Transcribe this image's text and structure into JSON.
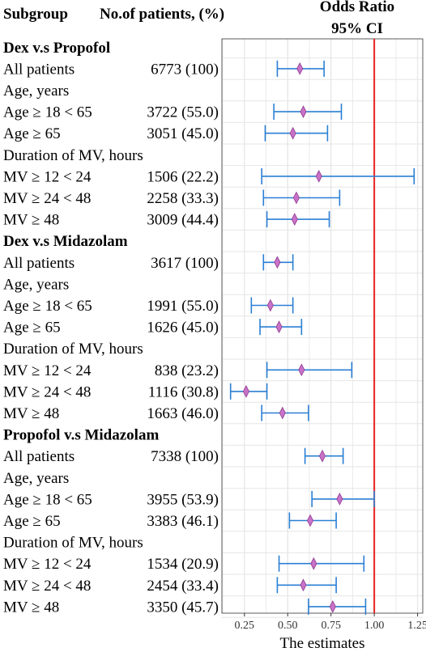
{
  "header": {
    "subgroup": "Subgroup",
    "patients": "No.of patients, (%)",
    "or_line1": "Odds Ratio",
    "or_line2": "95% CI"
  },
  "chart_data": {
    "type": "forest",
    "xlabel": "The estimates",
    "xlim": [
      0.12,
      1.28
    ],
    "xticks": [
      "0.25",
      "0.50",
      "0.75",
      "1.00",
      "1.25"
    ],
    "reference_line": 1.0,
    "colors": {
      "ci": "#2a7fd4",
      "point_fill": "#c872c8",
      "point_stroke": "#8e3a8e",
      "reference": "#e8231f",
      "grid": "#e6e6e6"
    },
    "rows": [
      {
        "kind": "group",
        "label": "Dex v.s Propofol"
      },
      {
        "kind": "data",
        "label": "All patients",
        "count": "6773 (100)",
        "est": 0.57,
        "lo": 0.44,
        "hi": 0.71
      },
      {
        "kind": "sub",
        "label": "Age, years"
      },
      {
        "kind": "data",
        "label": "Age ≥ 18 < 65",
        "count": "3722 (55.0)",
        "est": 0.59,
        "lo": 0.42,
        "hi": 0.81
      },
      {
        "kind": "data",
        "label": "Age ≥ 65",
        "count": "3051 (45.0)",
        "est": 0.53,
        "lo": 0.37,
        "hi": 0.73
      },
      {
        "kind": "sub",
        "label": "Duration of MV, hours"
      },
      {
        "kind": "data",
        "label": "MV ≥ 12 < 24",
        "count": "1506 (22.2)",
        "est": 0.68,
        "lo": 0.35,
        "hi": 1.23
      },
      {
        "kind": "data",
        "label": "MV ≥ 24 < 48",
        "count": "2258 (33.3)",
        "est": 0.55,
        "lo": 0.36,
        "hi": 0.8
      },
      {
        "kind": "data",
        "label": "MV ≥ 48",
        "count": "3009 (44.4)",
        "est": 0.54,
        "lo": 0.38,
        "hi": 0.74
      },
      {
        "kind": "group",
        "label": "Dex v.s Midazolam"
      },
      {
        "kind": "data",
        "label": "All patients",
        "count": "3617 (100)",
        "est": 0.44,
        "lo": 0.36,
        "hi": 0.53
      },
      {
        "kind": "sub",
        "label": "Age, years"
      },
      {
        "kind": "data",
        "label": "Age ≥ 18 < 65",
        "count": "1991 (55.0)",
        "est": 0.4,
        "lo": 0.29,
        "hi": 0.53
      },
      {
        "kind": "data",
        "label": "Age ≥ 65",
        "count": "1626 (45.0)",
        "est": 0.45,
        "lo": 0.34,
        "hi": 0.58
      },
      {
        "kind": "sub",
        "label": "Duration of MV, hours"
      },
      {
        "kind": "data",
        "label": "MV ≥ 12 < 24",
        "count": "838 (23.2)",
        "est": 0.58,
        "lo": 0.38,
        "hi": 0.87
      },
      {
        "kind": "data",
        "label": "MV ≥ 24 < 48",
        "count": "1116 (30.8)",
        "est": 0.26,
        "lo": 0.17,
        "hi": 0.38
      },
      {
        "kind": "data",
        "label": "MV ≥ 48",
        "count": "1663 (46.0)",
        "est": 0.47,
        "lo": 0.35,
        "hi": 0.62
      },
      {
        "kind": "group",
        "label": "Propofol v.s Midazolam"
      },
      {
        "kind": "data",
        "label": "All patients",
        "count": "7338 (100)",
        "est": 0.7,
        "lo": 0.6,
        "hi": 0.82
      },
      {
        "kind": "sub",
        "label": "Age, years"
      },
      {
        "kind": "data",
        "label": "Age ≥ 18 < 65",
        "count": "3955 (53.9)",
        "est": 0.8,
        "lo": 0.64,
        "hi": 1.0
      },
      {
        "kind": "data",
        "label": "Age ≥ 65",
        "count": "3383 (46.1)",
        "est": 0.63,
        "lo": 0.51,
        "hi": 0.78
      },
      {
        "kind": "sub",
        "label": "Duration of MV, hours"
      },
      {
        "kind": "data",
        "label": "MV ≥ 12 < 24",
        "count": "1534 (20.9)",
        "est": 0.65,
        "lo": 0.45,
        "hi": 0.94
      },
      {
        "kind": "data",
        "label": "MV ≥ 24 < 48",
        "count": "2454 (33.4)",
        "est": 0.59,
        "lo": 0.44,
        "hi": 0.78
      },
      {
        "kind": "data",
        "label": "MV ≥ 48",
        "count": "3350 (45.7)",
        "est": 0.76,
        "lo": 0.62,
        "hi": 0.95
      }
    ]
  }
}
